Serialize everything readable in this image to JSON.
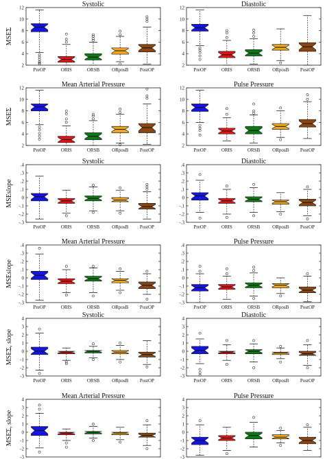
{
  "colors": {
    "PreOP": "#1414e0",
    "ORIS": "#e01414",
    "ORSB": "#0c7a14",
    "ORposB": "#f2a81a",
    "PostOP": "#8a4612"
  },
  "chart_data": [
    {
      "type": "box",
      "title": "Systolic",
      "ylabel": "MSEΣ",
      "ylim": [
        2,
        12
      ],
      "yticks": [
        2,
        4,
        6,
        8,
        10,
        12
      ],
      "categories": [
        "PreOP",
        "ORIS",
        "ORSB",
        "ORposB",
        "PostOP"
      ],
      "boxes": [
        {
          "min": 4.2,
          "q1": 7.8,
          "median": 8.6,
          "q3": 9.2,
          "max": 11.6,
          "outliers": [
            3.8,
            3.4,
            3.0,
            2.6,
            2.4,
            2.2
          ]
        },
        {
          "min": 2.0,
          "q1": 2.5,
          "median": 3.0,
          "q3": 3.5,
          "max": 5.6,
          "outliers": [
            6.0,
            6.5,
            7.4
          ]
        },
        {
          "min": 2.0,
          "q1": 2.9,
          "median": 3.4,
          "q3": 4.0,
          "max": 6.0,
          "outliers": [
            6.3,
            6.6,
            7.0,
            7.3
          ]
        },
        {
          "min": 2.6,
          "q1": 3.9,
          "median": 4.5,
          "q3": 5.0,
          "max": 7.0,
          "outliers": [
            7.3,
            7.9,
            2.2
          ]
        },
        {
          "min": 2.2,
          "q1": 4.3,
          "median": 5.0,
          "q3": 5.6,
          "max": 8.6,
          "outliers": [
            9.6,
            10.0,
            10.4
          ]
        }
      ]
    },
    {
      "type": "box",
      "title": "Diastolic",
      "ylabel": "",
      "ylim": [
        2,
        12
      ],
      "yticks": [
        2,
        4,
        6,
        8,
        10,
        12
      ],
      "categories": [
        "PreOP",
        "ORIS",
        "ORSB",
        "ORposB",
        "PostOP"
      ],
      "boxes": [
        {
          "min": 5.4,
          "q1": 7.9,
          "median": 8.5,
          "q3": 9.1,
          "max": 11.6,
          "outliers": [
            5.0,
            4.6,
            4.2,
            3.6,
            3.0
          ]
        },
        {
          "min": 2.0,
          "q1": 3.3,
          "median": 3.8,
          "q3": 4.4,
          "max": 6.3,
          "outliers": [
            6.8,
            7.6,
            8.0
          ]
        },
        {
          "min": 2.2,
          "q1": 3.6,
          "median": 4.1,
          "q3": 4.7,
          "max": 6.6,
          "outliers": [
            7.0,
            7.6,
            8.1
          ]
        },
        {
          "min": 2.8,
          "q1": 4.6,
          "median": 5.1,
          "q3": 5.6,
          "max": 8.3,
          "outliers": [
            2.4
          ]
        },
        {
          "min": 2.0,
          "q1": 4.4,
          "median": 5.2,
          "q3": 5.9,
          "max": 10.6,
          "outliers": []
        }
      ]
    },
    {
      "type": "box",
      "title": "Mean Arterial Pressure",
      "ylabel": "MSEΣ",
      "ylim": [
        2,
        12
      ],
      "yticks": [
        2,
        4,
        6,
        8,
        10,
        12
      ],
      "categories": [
        "PreOP",
        "ORIS",
        "ORSB",
        "ORposB",
        "PostOP"
      ],
      "boxes": [
        {
          "min": 5.6,
          "q1": 8.0,
          "median": 8.7,
          "q3": 9.2,
          "max": 11.6,
          "outliers": [
            5.2,
            4.7,
            4.1,
            3.6,
            3.1
          ]
        },
        {
          "min": 2.0,
          "q1": 2.5,
          "median": 3.0,
          "q3": 3.6,
          "max": 5.4,
          "outliers": [
            6.0,
            6.6,
            7.5,
            8.0
          ]
        },
        {
          "min": 2.0,
          "q1": 3.0,
          "median": 3.6,
          "q3": 4.2,
          "max": 6.3,
          "outliers": [
            6.6,
            7.1,
            7.4
          ]
        },
        {
          "min": 2.4,
          "q1": 4.2,
          "median": 4.8,
          "q3": 5.3,
          "max": 7.4,
          "outliers": [
            7.7,
            8.3,
            2.1
          ]
        },
        {
          "min": 2.2,
          "q1": 4.2,
          "median": 5.1,
          "q3": 5.8,
          "max": 9.2,
          "outliers": [
            10.2,
            10.6,
            11.8
          ]
        }
      ]
    },
    {
      "type": "box",
      "title": "Pulse Pressure",
      "ylabel": "",
      "ylim": [
        2,
        12
      ],
      "yticks": [
        2,
        4,
        6,
        8,
        10,
        12
      ],
      "categories": [
        "PreOP",
        "ORIS",
        "ORSB",
        "ORposB",
        "PostOP"
      ],
      "boxes": [
        {
          "min": 6.0,
          "q1": 7.9,
          "median": 8.6,
          "q3": 9.2,
          "max": 11.6,
          "outliers": [
            5.5,
            5.0,
            4.6,
            3.8
          ]
        },
        {
          "min": 2.8,
          "q1": 4.0,
          "median": 4.5,
          "q3": 5.0,
          "max": 6.8,
          "outliers": [
            7.4,
            8.4
          ]
        },
        {
          "min": 2.4,
          "q1": 4.0,
          "median": 4.6,
          "q3": 5.3,
          "max": 7.3,
          "outliers": [
            7.6,
            8.0,
            9.2
          ]
        },
        {
          "min": 3.4,
          "q1": 4.8,
          "median": 5.3,
          "q3": 5.8,
          "max": 8.0,
          "outliers": [
            8.5,
            3.0
          ]
        },
        {
          "min": 3.2,
          "q1": 5.2,
          "median": 5.8,
          "q3": 6.5,
          "max": 9.6,
          "outliers": [
            10.0,
            10.8
          ]
        }
      ]
    },
    {
      "type": "box",
      "title": "Systolic",
      "ylabel": "MSEslope",
      "ylim": [
        -0.3,
        0.4
      ],
      "yticks": [
        -0.3,
        -0.2,
        -0.1,
        0,
        0.1,
        0.2,
        0.3,
        0.4
      ],
      "categories": [
        "PreOP",
        "ORIS",
        "ORSB",
        "ORposB",
        "PostOP"
      ],
      "boxes": [
        {
          "min": -0.26,
          "q1": -0.04,
          "median": 0.01,
          "q3": 0.05,
          "max": 0.26,
          "outliers": []
        },
        {
          "min": -0.19,
          "q1": -0.07,
          "median": -0.04,
          "q3": -0.01,
          "max": 0.09,
          "outliers": [
            -0.22
          ]
        },
        {
          "min": -0.16,
          "q1": -0.04,
          "median": -0.01,
          "q3": 0.02,
          "max": 0.13,
          "outliers": [
            0.15,
            -0.18
          ]
        },
        {
          "min": -0.16,
          "q1": -0.05,
          "median": -0.03,
          "q3": 0.0,
          "max": 0.09,
          "outliers": [
            0.12,
            -0.19
          ]
        },
        {
          "min": -0.26,
          "q1": -0.14,
          "median": -0.11,
          "q3": -0.07,
          "max": 0.07,
          "outliers": [
            0.1,
            0.13,
            0.16
          ]
        }
      ]
    },
    {
      "type": "box",
      "title": "Diastolic",
      "ylabel": "",
      "ylim": [
        -0.3,
        0.4
      ],
      "yticks": [
        -0.3,
        -0.2,
        -0.1,
        0,
        0.1,
        0.2,
        0.3,
        0.4
      ],
      "categories": [
        "PreOP",
        "ORIS",
        "ORSB",
        "ORposB",
        "PostOP"
      ],
      "boxes": [
        {
          "min": -0.18,
          "q1": -0.03,
          "median": 0.02,
          "q3": 0.06,
          "max": 0.21,
          "outliers": [
            0.28,
            -0.25
          ]
        },
        {
          "min": -0.2,
          "q1": -0.07,
          "median": -0.04,
          "q3": -0.01,
          "max": 0.1,
          "outliers": [
            0.14,
            -0.24
          ]
        },
        {
          "min": -0.18,
          "q1": -0.05,
          "median": -0.02,
          "q3": 0.01,
          "max": 0.12,
          "outliers": [
            0.16,
            -0.22
          ]
        },
        {
          "min": -0.17,
          "q1": -0.08,
          "median": -0.05,
          "q3": -0.03,
          "max": 0.06,
          "outliers": [
            -0.2
          ]
        },
        {
          "min": -0.22,
          "q1": -0.1,
          "median": -0.06,
          "q3": -0.02,
          "max": 0.1,
          "outliers": [
            0.13,
            -0.26
          ]
        }
      ]
    },
    {
      "type": "box",
      "title": "Mean Arterial Pressure",
      "ylabel": "MSEslope",
      "ylim": [
        -0.3,
        0.4
      ],
      "yticks": [
        -0.3,
        -0.2,
        -0.1,
        0,
        0.1,
        0.2,
        0.3,
        0.4
      ],
      "categories": [
        "PreOP",
        "ORIS",
        "ORSB",
        "ORposB",
        "PostOP"
      ],
      "boxes": [
        {
          "min": -0.27,
          "q1": -0.02,
          "median": 0.03,
          "q3": 0.08,
          "max": 0.29,
          "outliers": [
            0.36
          ]
        },
        {
          "min": -0.18,
          "q1": -0.07,
          "median": -0.04,
          "q3": -0.01,
          "max": 0.1,
          "outliers": [
            0.14,
            -0.21
          ]
        },
        {
          "min": -0.18,
          "q1": -0.04,
          "median": -0.01,
          "q3": 0.02,
          "max": 0.12,
          "outliers": [
            0.14,
            -0.22
          ]
        },
        {
          "min": -0.15,
          "q1": -0.06,
          "median": -0.03,
          "q3": -0.01,
          "max": 0.08,
          "outliers": [
            0.11,
            -0.18
          ]
        },
        {
          "min": -0.2,
          "q1": -0.13,
          "median": -0.09,
          "q3": -0.05,
          "max": 0.05,
          "outliers": [
            0.08,
            -0.26
          ]
        }
      ]
    },
    {
      "type": "box",
      "title": "Pulse Pressure",
      "ylabel": "",
      "ylim": [
        -0.3,
        0.4
      ],
      "yticks": [
        -0.3,
        -0.2,
        -0.1,
        0,
        0.1,
        0.2,
        0.3,
        0.4
      ],
      "categories": [
        "PreOP",
        "ORIS",
        "ORSB",
        "ORposB",
        "PostOP"
      ],
      "boxes": [
        {
          "min": -0.3,
          "q1": -0.16,
          "median": -0.12,
          "q3": -0.08,
          "max": 0.05,
          "outliers": [
            0.08,
            0.14
          ]
        },
        {
          "min": -0.26,
          "q1": -0.14,
          "median": -0.11,
          "q3": -0.08,
          "max": 0.02,
          "outliers": [
            0.05,
            0.11
          ]
        },
        {
          "min": -0.22,
          "q1": -0.12,
          "median": -0.09,
          "q3": -0.06,
          "max": 0.06,
          "outliers": [
            0.09,
            0.13,
            -0.25
          ]
        },
        {
          "min": -0.19,
          "q1": -0.12,
          "median": -0.09,
          "q3": -0.07,
          "max": 0.0,
          "outliers": [
            -0.22
          ]
        },
        {
          "min": -0.29,
          "q1": -0.18,
          "median": -0.15,
          "q3": -0.11,
          "max": 0.02,
          "outliers": [
            0.05
          ]
        }
      ]
    },
    {
      "type": "box",
      "title": "Systolic",
      "ylabel": "MSEΣ, slope",
      "ylim": [
        -3,
        4
      ],
      "yticks": [
        -3,
        -2,
        -1,
        0,
        1,
        2,
        3,
        4
      ],
      "categories": [
        "PreOP",
        "ORIS",
        "ORSB",
        "ORposB",
        "PostOP"
      ],
      "boxes": [
        {
          "min": -2.3,
          "q1": -0.4,
          "median": 0.0,
          "q3": 0.5,
          "max": 2.2,
          "outliers": [
            2.7,
            -2.7
          ]
        },
        {
          "min": -1.1,
          "q1": -0.3,
          "median": -0.1,
          "q3": 0.0,
          "max": 0.4,
          "outliers": [
            -1.3,
            -1.5
          ]
        },
        {
          "min": -0.8,
          "q1": -0.2,
          "median": 0.0,
          "q3": 0.1,
          "max": 0.6,
          "outliers": [
            0.9,
            -1.0
          ]
        },
        {
          "min": -1.0,
          "q1": -0.3,
          "median": -0.1,
          "q3": 0.1,
          "max": 0.7,
          "outliers": [
            -1.3,
            1.0
          ]
        },
        {
          "min": -1.6,
          "q1": -0.7,
          "median": -0.4,
          "q3": -0.1,
          "max": 1.3,
          "outliers": [
            -1.9
          ]
        }
      ]
    },
    {
      "type": "box",
      "title": "Diastolic",
      "ylabel": "",
      "ylim": [
        -3,
        4
      ],
      "yticks": [
        -3,
        -2,
        -1,
        0,
        1,
        2,
        3,
        4
      ],
      "categories": [
        "PreOP",
        "ORIS",
        "ORSB",
        "ORposB",
        "PostOP"
      ],
      "boxes": [
        {
          "min": -1.5,
          "q1": -0.3,
          "median": 0.1,
          "q3": 0.6,
          "max": 1.5,
          "outliers": [
            2.2,
            -2.2,
            -2.6,
            -2.9
          ]
        },
        {
          "min": -1.1,
          "q1": -0.3,
          "median": -0.1,
          "q3": 0.0,
          "max": 0.8,
          "outliers": [
            -1.6,
            1.3
          ]
        },
        {
          "min": -1.3,
          "q1": -0.3,
          "median": 0.0,
          "q3": 0.2,
          "max": 0.9,
          "outliers": [
            1.3,
            -2.0
          ]
        },
        {
          "min": -0.9,
          "q1": -0.4,
          "median": -0.2,
          "q3": -0.1,
          "max": 0.4,
          "outliers": [
            0.6,
            -1.3
          ]
        },
        {
          "min": -1.7,
          "q1": -0.5,
          "median": -0.3,
          "q3": 0.0,
          "max": 0.8,
          "outliers": [
            1.3,
            -2.0
          ]
        }
      ]
    },
    {
      "type": "box",
      "title": "Mean Arterial Pressure",
      "ylabel": "MSEΣ, slope",
      "ylim": [
        -3,
        4
      ],
      "yticks": [
        -3,
        -2,
        -1,
        0,
        1,
        2,
        3,
        4
      ],
      "categories": [
        "PreOP",
        "ORIS",
        "ORSB",
        "ORposB",
        "PostOP"
      ],
      "boxes": [
        {
          "min": -1.9,
          "q1": -0.4,
          "median": 0.2,
          "q3": 0.7,
          "max": 2.3,
          "outliers": [
            2.8,
            3.3,
            -2.4
          ]
        },
        {
          "min": -1.0,
          "q1": -0.3,
          "median": -0.1,
          "q3": 0.0,
          "max": 0.4,
          "outliers": [
            -1.3,
            -1.8
          ]
        },
        {
          "min": -0.7,
          "q1": -0.2,
          "median": 0.0,
          "q3": 0.1,
          "max": 0.7,
          "outliers": [
            1.0,
            -1.0
          ]
        },
        {
          "min": -0.9,
          "q1": -0.3,
          "median": -0.1,
          "q3": 0.0,
          "max": 0.6,
          "outliers": [
            -1.2
          ]
        },
        {
          "min": -1.6,
          "q1": -0.6,
          "median": -0.4,
          "q3": -0.1,
          "max": 0.9,
          "outliers": [
            1.4,
            -2.0
          ]
        }
      ]
    },
    {
      "type": "box",
      "title": "Pulse Pressure",
      "ylabel": "",
      "ylim": [
        -3,
        4
      ],
      "yticks": [
        -3,
        -2,
        -1,
        0,
        1,
        2,
        3,
        4
      ],
      "categories": [
        "PreOP",
        "ORIS",
        "ORSB",
        "ORposB",
        "PostOP"
      ],
      "boxes": [
        {
          "min": -2.8,
          "q1": -1.5,
          "median": -1.0,
          "q3": -0.6,
          "max": 0.9,
          "outliers": [
            1.4
          ]
        },
        {
          "min": -2.2,
          "q1": -1.0,
          "median": -0.7,
          "q3": -0.4,
          "max": 0.6,
          "outliers": [
            -2.6
          ]
        },
        {
          "min": -1.8,
          "q1": -0.8,
          "median": -0.4,
          "q3": 0.0,
          "max": 1.2,
          "outliers": [
            1.8
          ]
        },
        {
          "min": -1.3,
          "q1": -0.8,
          "median": -0.6,
          "q3": -0.3,
          "max": 0.2,
          "outliers": [
            -1.6,
            0.5
          ]
        },
        {
          "min": -2.2,
          "q1": -1.4,
          "median": -1.0,
          "q3": -0.6,
          "max": 0.6,
          "outliers": [
            0.9
          ]
        }
      ]
    }
  ]
}
